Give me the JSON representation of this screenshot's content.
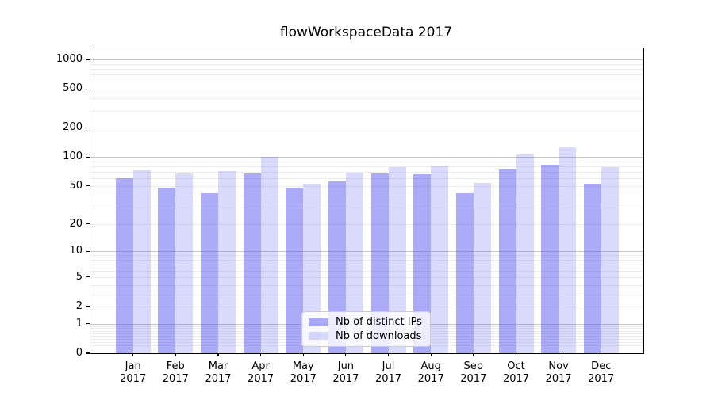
{
  "chart_data": {
    "type": "bar",
    "title": "flowWorkspaceData 2017",
    "categories": [
      "Jan",
      "Feb",
      "Mar",
      "Apr",
      "May",
      "Jun",
      "Jul",
      "Aug",
      "Sep",
      "Oct",
      "Nov",
      "Dec"
    ],
    "category_year": "2017",
    "series": [
      {
        "name": "Nb of distinct IPs",
        "color": "rgba(80,80,240,0.48)",
        "values": [
          60,
          48,
          42,
          68,
          48,
          56,
          68,
          67,
          42,
          74,
          84,
          53
        ]
      },
      {
        "name": "Nb of downloads",
        "color": "rgba(80,80,240,0.21)",
        "values": [
          73,
          68,
          71,
          100,
          53,
          69,
          78,
          81,
          54,
          107,
          126,
          78
        ]
      }
    ],
    "yscale": "log1p",
    "ylim": [
      0,
      1300
    ],
    "ytick_values": [
      0,
      1,
      2,
      5,
      10,
      20,
      50,
      100,
      200,
      500,
      1000
    ],
    "ytick_labels": [
      "0",
      "1",
      "2",
      "5",
      "10",
      "20",
      "50",
      "100",
      "200",
      "500",
      "1000"
    ],
    "grid": {
      "major_values": [
        1,
        10,
        100,
        1000
      ],
      "minor_values": [
        0.2,
        0.3,
        0.4,
        0.5,
        0.6,
        0.7,
        0.8,
        0.9,
        2,
        3,
        4,
        5,
        6,
        7,
        8,
        9,
        20,
        30,
        40,
        50,
        60,
        70,
        80,
        90,
        200,
        300,
        400,
        500,
        600,
        700,
        800,
        900
      ],
      "major_color": "#c6c6c6",
      "minor_color": "#ececec"
    },
    "legend": {
      "position": "lower center",
      "entries": [
        "Nb of distinct IPs",
        "Nb of downloads"
      ]
    }
  },
  "colors": {
    "background": "#ffffff",
    "spine": "#000000",
    "text": "#000000",
    "bar_base": "#5050f0"
  }
}
